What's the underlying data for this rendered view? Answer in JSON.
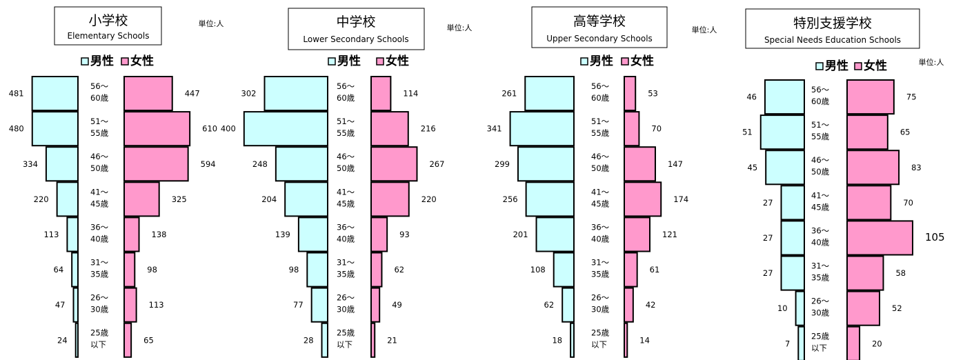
{
  "unit_label": "単位:人",
  "legend": {
    "male": "男性",
    "female": "女性"
  },
  "colors": {
    "male": "#ccffff",
    "female": "#ff99cc",
    "stroke": "#000000"
  },
  "age_groups": [
    [
      "56～",
      "60歳"
    ],
    [
      "51～",
      "55歳"
    ],
    [
      "46～",
      "50歳"
    ],
    [
      "41～",
      "45歳"
    ],
    [
      "36～",
      "40歳"
    ],
    [
      "31～",
      "35歳"
    ],
    [
      "26～",
      "30歳"
    ],
    [
      "25歳",
      "以下"
    ]
  ],
  "chart_data": [
    {
      "type": "bar",
      "orientation": "horizontal-population-pyramid",
      "title": "小学校",
      "subtitle": "Elementary Schools",
      "categories": [
        "56～60歳",
        "51～55歳",
        "46～50歳",
        "41～45歳",
        "36～40歳",
        "31～35歳",
        "26～30歳",
        "25歳以下"
      ],
      "series": [
        {
          "name": "男性",
          "values": [
            481,
            480,
            334,
            220,
            113,
            64,
            47,
            24
          ]
        },
        {
          "name": "女性",
          "values": [
            447,
            610,
            594,
            325,
            138,
            98,
            113,
            65
          ]
        }
      ]
    },
    {
      "type": "bar",
      "orientation": "horizontal-population-pyramid",
      "title": "中学校",
      "subtitle": "Lower Secondary Schools",
      "categories": [
        "56～60歳",
        "51～55歳",
        "46～50歳",
        "41～45歳",
        "36～40歳",
        "31～35歳",
        "26～30歳",
        "25歳以下"
      ],
      "series": [
        {
          "name": "男性",
          "values": [
            302,
            400,
            248,
            204,
            139,
            98,
            77,
            28
          ]
        },
        {
          "name": "女性",
          "values": [
            114,
            216,
            267,
            220,
            93,
            62,
            49,
            21
          ]
        }
      ]
    },
    {
      "type": "bar",
      "orientation": "horizontal-population-pyramid",
      "title": "高等学校",
      "subtitle": "Upper Secondary Schools",
      "categories": [
        "56～60歳",
        "51～55歳",
        "46～50歳",
        "41～45歳",
        "36～40歳",
        "31～35歳",
        "26～30歳",
        "25歳以下"
      ],
      "series": [
        {
          "name": "男性",
          "values": [
            261,
            341,
            299,
            256,
            201,
            108,
            62,
            18
          ]
        },
        {
          "name": "女性",
          "values": [
            53,
            70,
            147,
            174,
            121,
            61,
            42,
            14
          ]
        }
      ]
    },
    {
      "type": "bar",
      "orientation": "horizontal-population-pyramid",
      "title": "特別支援学校",
      "subtitle": "Special Needs Education Schools",
      "categories": [
        "56～60歳",
        "51～55歳",
        "46～50歳",
        "41～45歳",
        "36～40歳",
        "31～35歳",
        "26～30歳",
        "25歳以下"
      ],
      "series": [
        {
          "name": "男性",
          "values": [
            46,
            51,
            45,
            27,
            27,
            27,
            10,
            7
          ]
        },
        {
          "name": "女性",
          "values": [
            75,
            65,
            83,
            70,
            105,
            58,
            52,
            20
          ]
        }
      ]
    }
  ]
}
